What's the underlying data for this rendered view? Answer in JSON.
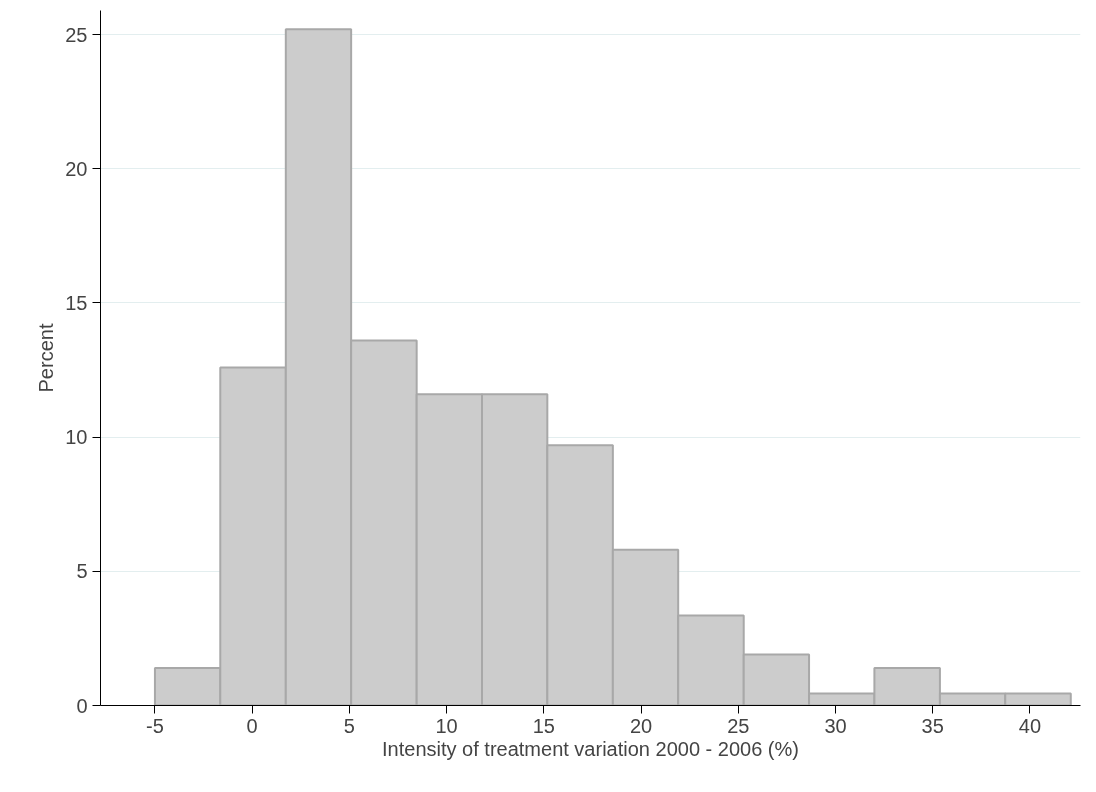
{
  "chart_data": {
    "type": "histogram",
    "xlabel": "Intensity of treatment variation 2000 - 2006 (%)",
    "ylabel": "Percent",
    "bins": [
      -5,
      -1.64,
      1.73,
      5.09,
      8.46,
      11.82,
      15.18,
      18.55,
      21.91,
      25.28,
      28.64,
      32.0,
      35.37,
      38.73,
      42.1
    ],
    "values": [
      1.4,
      12.6,
      25.2,
      13.6,
      11.6,
      11.6,
      9.7,
      5.8,
      3.35,
      1.9,
      0.45,
      1.4,
      0.45,
      0.45
    ],
    "color": "#cccccc",
    "xlim": [
      -7.8,
      42.6
    ],
    "xticks": [
      -5,
      0,
      5,
      10,
      15,
      20,
      25,
      30,
      35,
      40
    ],
    "ylim": [
      0,
      25.9
    ],
    "yticks": [
      0,
      5,
      10,
      15,
      20,
      25
    ],
    "grid": "y"
  }
}
